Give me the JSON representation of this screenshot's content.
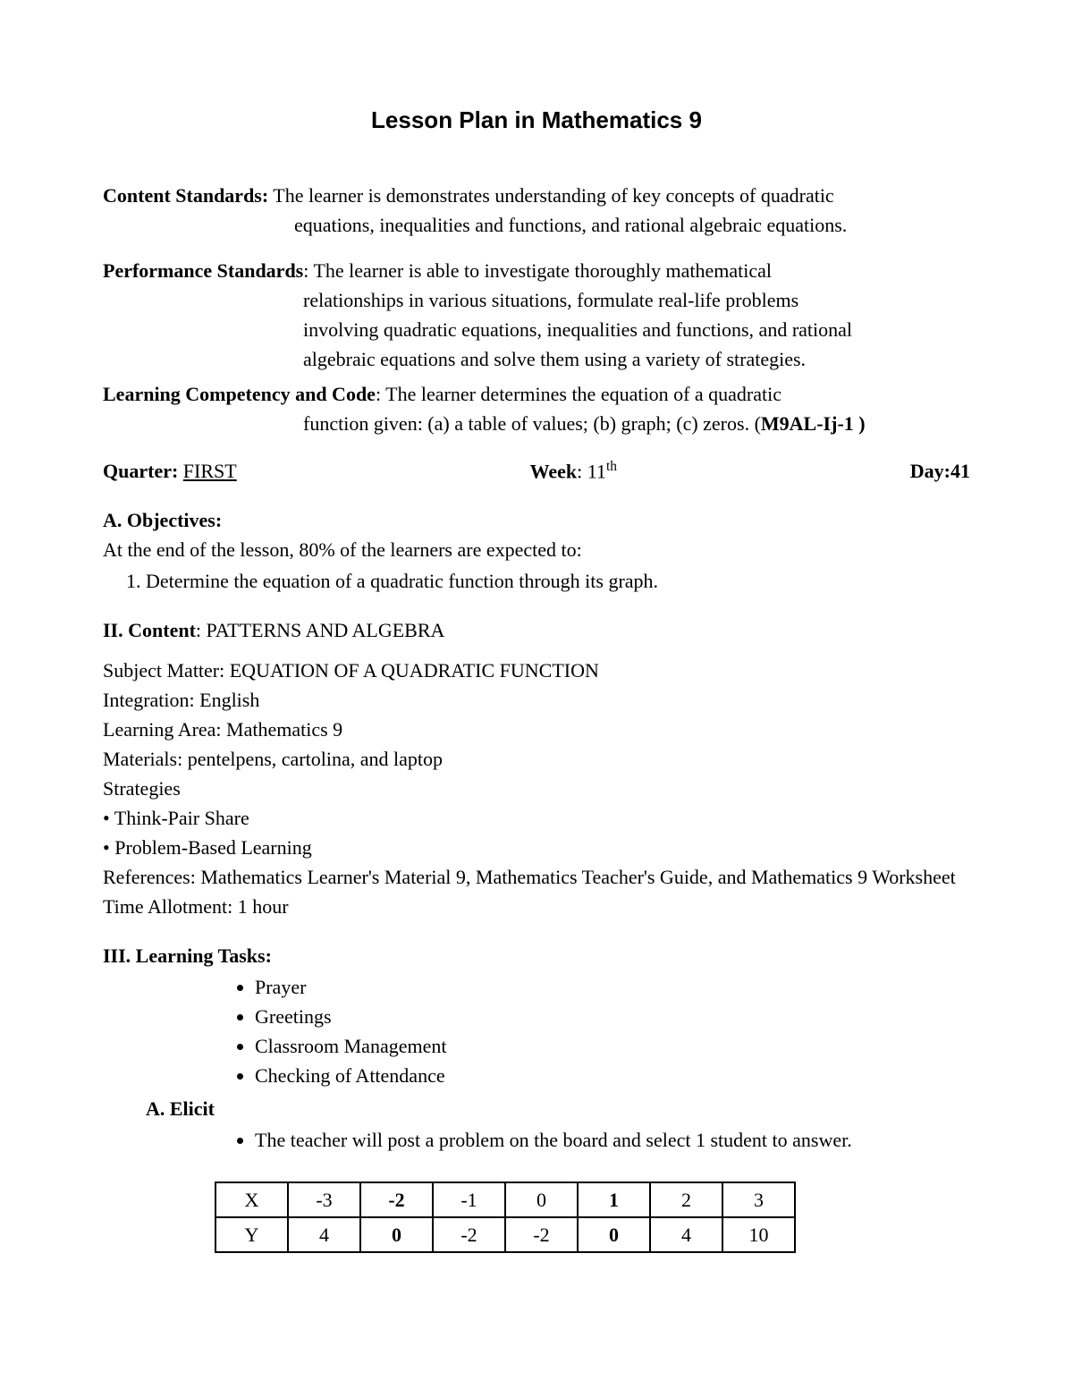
{
  "title": "Lesson Plan in Mathematics 9",
  "content_standards": {
    "label": "Content Standards:",
    "line1": " The learner is demonstrates understanding of key concepts of quadratic",
    "line2": "equations, inequalities and functions, and rational algebraic equations."
  },
  "performance_standards": {
    "label": "Performance Standards",
    "line1": ": The learner is able to investigate thoroughly mathematical",
    "line2": "relationships in various situations, formulate real-life problems",
    "line3": "involving quadratic equations, inequalities and functions, and rational",
    "line4": "algebraic equations and solve them using a variety of strategies."
  },
  "learning_competency": {
    "label": "Learning Competency and Code",
    "line1": ": The learner determines the equation of a quadratic",
    "line2_pre": "function given: (a) a table of values; (b) graph; (c) zeros. (",
    "line2_code": "M9AL-Ij-1 )"
  },
  "qwd": {
    "quarter_label": "Quarter: ",
    "quarter_value": "FIRST",
    "week_label": "Week",
    "week_value": ": 11",
    "week_suffix": "th",
    "day_label": "Day:",
    "day_value": "41"
  },
  "objectives": {
    "head": "A. Objectives:",
    "intro": "At the end of the lesson, 80% of the learners are expected to:",
    "item1": "Determine the equation of a quadratic function through its graph."
  },
  "content": {
    "head_label": "II. Content",
    "head_value": ": PATTERNS AND ALGEBRA",
    "subject": "Subject Matter: EQUATION OF A QUADRATIC FUNCTION",
    "integration": "Integration: English",
    "learning_area": "Learning Area: Mathematics 9",
    "materials": "Materials: pentelpens, cartolina, and laptop",
    "strategies_label": "Strategies",
    "strategy1": "• Think-Pair Share",
    "strategy2": "• Problem-Based Learning",
    "references": "References: Mathematics Learner's Material 9, Mathematics Teacher's Guide, and Mathematics 9 Worksheet",
    "time": "Time Allotment: 1 hour"
  },
  "learning_tasks": {
    "head": "III. Learning Tasks:",
    "items": [
      "Prayer",
      "Greetings",
      "Classroom Management",
      "Checking of Attendance"
    ],
    "elicit_head": "A.  Elicit",
    "elicit_item": "The teacher will post a problem on the board and select 1 student to answer."
  },
  "table": {
    "row1": [
      "X",
      "-3",
      "-2",
      "-1",
      "0",
      "1",
      "2",
      "3"
    ],
    "row2": [
      "Y",
      "4",
      "0",
      "-2",
      "-2",
      "0",
      "4",
      "10"
    ],
    "bold_cols_row1": [
      2,
      5
    ],
    "bold_cols_row2": [
      2,
      5
    ]
  }
}
